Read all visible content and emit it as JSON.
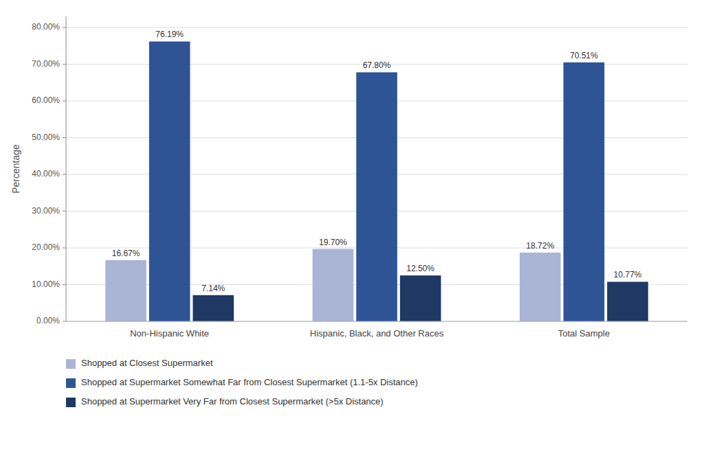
{
  "chart_data": {
    "type": "bar",
    "categories": [
      "Non-Hispanic White",
      "Hispanic, Black, and Other Races",
      "Total Sample"
    ],
    "series": [
      {
        "name": "Shopped at Closest Supermarket",
        "color": "#aab4d4",
        "values": [
          16.67,
          19.7,
          18.72
        ],
        "value_labels": [
          "16.67%",
          "19.70%",
          "18.72%"
        ]
      },
      {
        "name": "Shopped at Supermarket Somewhat Far from Closest Supermarket (1.1-5x Distance)",
        "color": "#2f5496",
        "values": [
          76.19,
          67.8,
          70.51
        ],
        "value_labels": [
          "76.19%",
          "67.80%",
          "70.51%"
        ]
      },
      {
        "name": "Shopped at Supermarket Very Far from Closest Supermarket (>5x Distance)",
        "color": "#1f3864",
        "values": [
          7.14,
          12.5,
          10.77
        ],
        "value_labels": [
          "7.14%",
          "12.50%",
          "10.77%"
        ]
      }
    ],
    "ylabel": "Percentage",
    "ylim": [
      0,
      83
    ],
    "yticks": [
      {
        "value": 0,
        "label": "0.00%"
      },
      {
        "value": 10,
        "label": "10.00%"
      },
      {
        "value": 20,
        "label": "20.00%"
      },
      {
        "value": 30,
        "label": "30.00%"
      },
      {
        "value": 40,
        "label": "40.00%"
      },
      {
        "value": 50,
        "label": "50.00%"
      },
      {
        "value": 60,
        "label": "60.00%"
      },
      {
        "value": 70,
        "label": "70.00%"
      },
      {
        "value": 80,
        "label": "80.00%"
      }
    ],
    "grid": true,
    "data_labels": true,
    "legend": "bottom"
  }
}
